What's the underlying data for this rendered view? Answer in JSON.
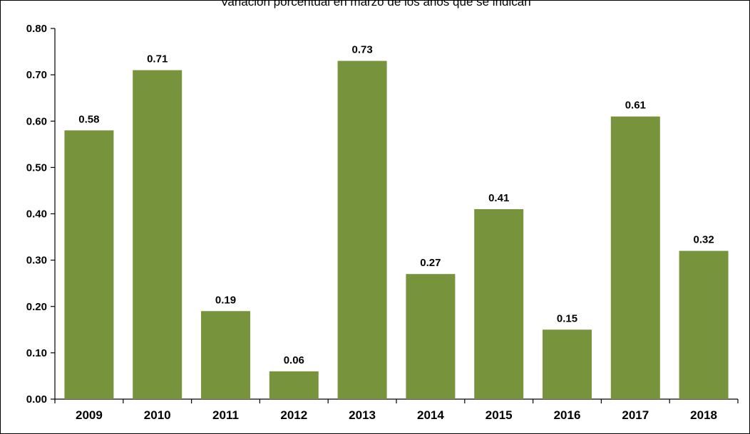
{
  "chart_data": {
    "type": "bar",
    "title": "Variación porcentual en marzo de los años que se indican",
    "xlabel": "",
    "ylabel": "",
    "categories": [
      "2009",
      "2010",
      "2011",
      "2012",
      "2013",
      "2014",
      "2015",
      "2016",
      "2017",
      "2018"
    ],
    "values": [
      0.58,
      0.71,
      0.19,
      0.06,
      0.73,
      0.27,
      0.41,
      0.15,
      0.61,
      0.32
    ],
    "data_labels": [
      "0.58",
      "0.71",
      "0.19",
      "0.06",
      "0.73",
      "0.27",
      "0.41",
      "0.15",
      "0.61",
      "0.32"
    ],
    "ylim": [
      0,
      0.8
    ],
    "yticks": [
      0,
      0.1,
      0.2,
      0.3,
      0.4,
      0.5,
      0.6,
      0.7,
      0.8
    ],
    "ytick_labels": [
      "0.00",
      "0.10",
      "0.20",
      "0.30",
      "0.40",
      "0.50",
      "0.60",
      "0.70",
      "0.80"
    ],
    "grid": false,
    "legend": "none",
    "bar_color": "#77933c"
  }
}
